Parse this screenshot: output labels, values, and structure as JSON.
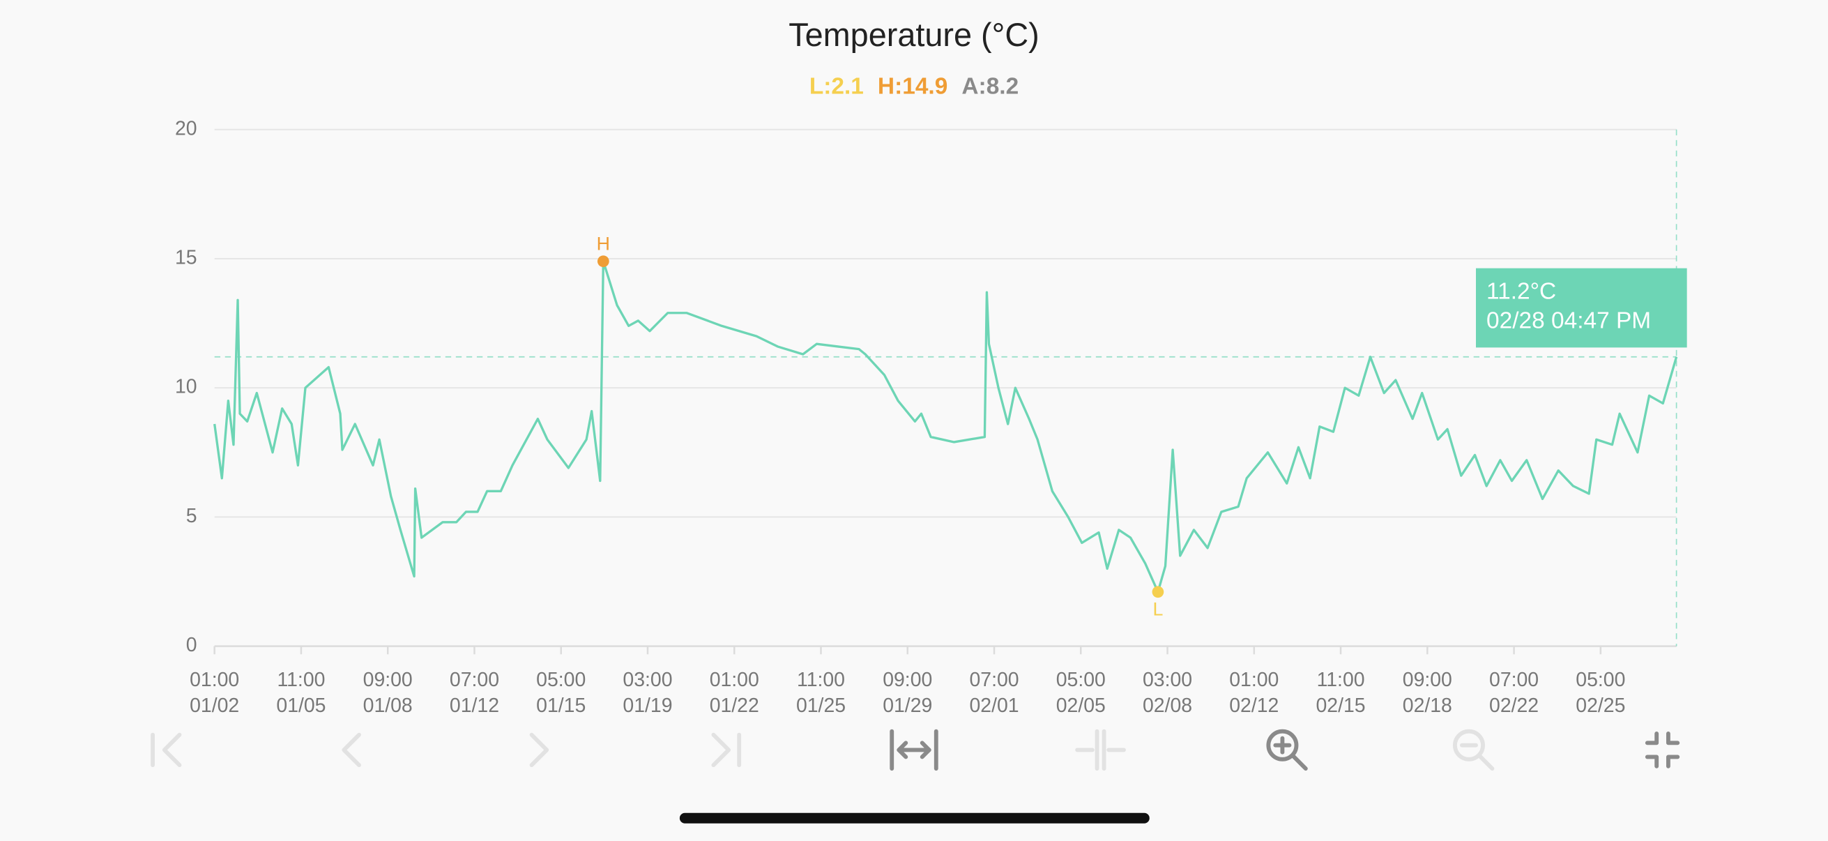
{
  "chart_data": {
    "type": "line",
    "title": "Temperature (°C)",
    "stats": [
      {
        "label": "L:",
        "value": 2.1,
        "color": "#f5cf4f"
      },
      {
        "label": "H:",
        "value": 14.9,
        "color": "#ef9d35"
      },
      {
        "label": "A:",
        "value": 8.2,
        "color": "#8a8a8a"
      }
    ],
    "xlim": [
      "01/02 01:00",
      "02/28 16:47"
    ],
    "xticks": [
      {
        "value": "01/02 01:00",
        "label": [
          "01:00",
          "01/02"
        ]
      },
      {
        "value": "01/05 11:00",
        "label": [
          "11:00",
          "01/05"
        ]
      },
      {
        "value": "01/08 21:00",
        "label": [
          "09:00",
          "01/08"
        ]
      },
      {
        "value": "01/12 07:00",
        "label": [
          "07:00",
          "01/12"
        ]
      },
      {
        "value": "01/15 17:00",
        "label": [
          "05:00",
          "01/15"
        ]
      },
      {
        "value": "01/19 03:00",
        "label": [
          "03:00",
          "01/19"
        ]
      },
      {
        "value": "01/22 13:00",
        "label": [
          "01:00",
          "01/22"
        ]
      },
      {
        "value": "01/25 23:00",
        "label": [
          "11:00",
          "01/25"
        ]
      },
      {
        "value": "01/29 09:00",
        "label": [
          "09:00",
          "01/29"
        ]
      },
      {
        "value": "02/01 19:00",
        "label": [
          "07:00",
          "02/01"
        ]
      },
      {
        "value": "02/05 05:00",
        "label": [
          "05:00",
          "02/05"
        ]
      },
      {
        "value": "02/08 15:00",
        "label": [
          "03:00",
          "02/08"
        ]
      },
      {
        "value": "02/12 01:00",
        "label": [
          "01:00",
          "02/12"
        ]
      },
      {
        "value": "02/15 11:00",
        "label": [
          "11:00",
          "02/15"
        ]
      },
      {
        "value": "02/18 21:00",
        "label": [
          "09:00",
          "02/18"
        ]
      },
      {
        "value": "02/22 07:00",
        "label": [
          "07:00",
          "02/22"
        ]
      },
      {
        "value": "02/25 17:00",
        "label": [
          "05:00",
          "02/25"
        ]
      }
    ],
    "ylim": [
      0,
      20
    ],
    "yticks": [
      0,
      5,
      10,
      15,
      20
    ],
    "grid": true,
    "series": [
      {
        "color": "#6dd5b5",
        "x": [
          "01/02 01:00",
          "01/02 08:00",
          "01/02 14:00",
          "01/02 19:00",
          "01/02 23:00",
          "01/03 01:00",
          "01/03 08:00",
          "01/03 17:00",
          "01/04 08:00",
          "01/04 17:00",
          "01/05 02:00",
          "01/05 08:00",
          "01/05 15:00",
          "01/06 13:00",
          "01/07 00:00",
          "01/07 02:00",
          "01/07 14:00",
          "01/08 07:00",
          "01/08 13:00",
          "01/09 00:00",
          "01/09 09:00",
          "01/09 22:00",
          "01/09 23:00",
          "01/10 05:00",
          "01/11 01:00",
          "01/11 14:00",
          "01/11 23:00",
          "01/12 10:00",
          "01/12 19:00",
          "01/13 08:00",
          "01/13 19:00",
          "01/14 19:00",
          "01/15 04:00",
          "01/16 00:00",
          "01/16 17:00",
          "01/16 22:00",
          "01/17 06:00",
          "01/17 09:00",
          "01/17 22:00",
          "01/18 09:00",
          "01/18 18:00",
          "01/19 05:00",
          "01/19 22:00",
          "01/20 16:00",
          "01/22 01:00",
          "01/23 10:00",
          "01/24 06:00",
          "01/25 06:00",
          "01/25 19:00",
          "01/26 15:00",
          "01/27 11:00",
          "01/27 17:00",
          "01/28 11:00",
          "01/29 00:00",
          "01/29 16:00",
          "01/29 22:00",
          "01/30 07:00",
          "01/31 05:00",
          "02/01 10:00",
          "02/01 12:00",
          "02/01 14:00",
          "02/01 23:00",
          "02/02 08:00",
          "02/02 15:00",
          "02/03 04:00",
          "02/03 12:00",
          "02/04 02:00",
          "02/04 17:00",
          "02/05 06:00",
          "02/05 22:00",
          "02/06 06:00",
          "02/06 17:00",
          "02/07 04:00",
          "02/07 18:00",
          "02/08 06:00",
          "02/08 13:00",
          "02/08 20:00",
          "02/09 03:00",
          "02/09 16:00",
          "02/10 05:00",
          "02/10 18:00",
          "02/11 10:00",
          "02/11 18:00",
          "02/12 14:00",
          "02/13 08:00",
          "02/13 19:00",
          "02/14 06:00",
          "02/14 15:00",
          "02/15 04:00",
          "02/15 15:00",
          "02/16 04:00",
          "02/16 15:00",
          "02/17 04:00",
          "02/17 15:00",
          "02/18 07:00",
          "02/18 16:00",
          "02/19 07:00",
          "02/19 16:00",
          "02/20 05:00",
          "02/20 18:00",
          "02/21 05:00",
          "02/21 18:00",
          "02/22 05:00",
          "02/22 19:00",
          "02/23 10:00",
          "02/24 01:00",
          "02/24 15:00",
          "02/25 06:00",
          "02/25 13:00",
          "02/26 04:00",
          "02/26 11:00",
          "02/27 04:00",
          "02/27 15:00",
          "02/28 04:00",
          "02/28 16:47"
        ],
        "values": [
          8.6,
          6.5,
          9.5,
          7.8,
          13.4,
          9.0,
          8.7,
          9.8,
          7.5,
          9.2,
          8.6,
          7.0,
          10.0,
          10.8,
          9.0,
          7.6,
          8.6,
          7.0,
          8.0,
          5.8,
          4.5,
          2.7,
          6.1,
          4.2,
          4.8,
          4.8,
          5.2,
          5.2,
          6.0,
          6.0,
          7.0,
          8.8,
          8.0,
          6.9,
          8.0,
          9.1,
          6.4,
          14.9,
          13.2,
          12.4,
          12.6,
          12.2,
          12.9,
          12.9,
          12.4,
          12.0,
          11.6,
          11.3,
          11.7,
          11.6,
          11.5,
          11.3,
          10.5,
          9.5,
          8.7,
          9.0,
          8.1,
          7.9,
          8.1,
          13.7,
          11.7,
          10.0,
          8.6,
          10.0,
          8.8,
          8.0,
          6.0,
          5.0,
          4.0,
          4.4,
          3.0,
          4.5,
          4.2,
          3.2,
          2.1,
          3.1,
          7.6,
          3.5,
          4.5,
          3.8,
          5.2,
          5.4,
          6.5,
          7.5,
          6.3,
          7.7,
          6.5,
          8.5,
          8.3,
          10.0,
          9.7,
          11.2,
          9.8,
          10.3,
          8.8,
          9.8,
          8.0,
          8.4,
          6.6,
          7.4,
          6.2,
          7.2,
          6.4,
          7.2,
          5.7,
          6.8,
          6.2,
          5.9,
          8.0,
          7.8,
          9.0,
          7.5,
          9.7,
          9.4,
          11.2
        ]
      }
    ],
    "markers": [
      {
        "label": "H",
        "x": "01/17 09:00",
        "value": 14.9,
        "color": "#ef9d35"
      },
      {
        "label": "L",
        "x": "02/08 06:00",
        "value": 2.1,
        "color": "#f5cf4f"
      }
    ],
    "tooltip": {
      "x": "02/28 16:47",
      "value": 11.2,
      "value_label": "11.2°C",
      "time_label": "02/28 04:47 PM",
      "color": "#6dd5b5"
    }
  }
}
